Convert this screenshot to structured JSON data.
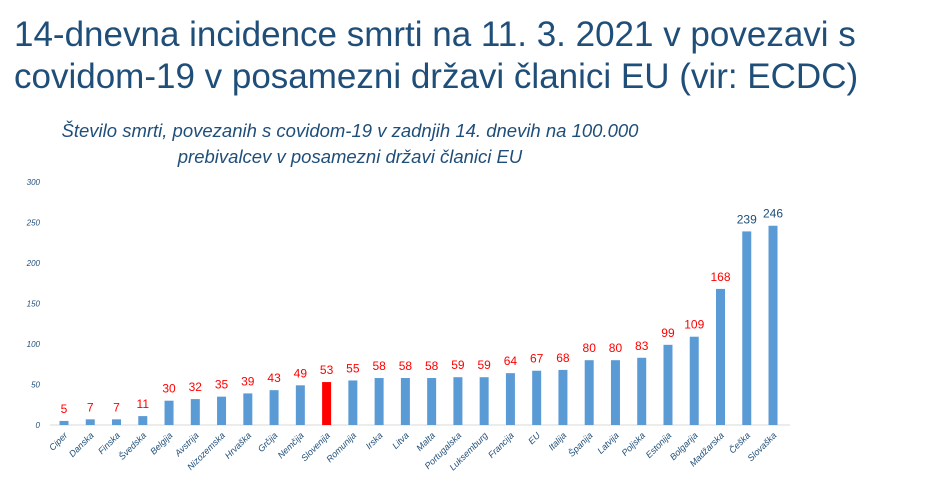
{
  "title_line1": "14-dnevna incidence smrti na 11. 3. 2021 v  povezavi s",
  "title_line2": "covidom-19 v posamezni državi članici EU (vir: ECDC)",
  "chart_data": {
    "type": "bar",
    "title": "Število smrti, povezanih s covidom-19 v zadnjih 14. dnevih na 100.000 prebivalcev v posamezni državi članici EU",
    "categories": [
      "Ciper",
      "Danska",
      "Finska",
      "Švedska",
      "Belgija",
      "Avstrija",
      "Nizozemska",
      "Hrvaška",
      "Grčija",
      "Nemčija",
      "Slovenija",
      "Romunija",
      "Irska",
      "Litva",
      "Malta",
      "Portugalska",
      "Luksemburg",
      "Francija",
      "EU",
      "Italija",
      "Španija",
      "Latvija",
      "Poljska",
      "Estonija",
      "Bolgarija",
      "Madžarska",
      "Češka",
      "Slovaška"
    ],
    "values": [
      5,
      7,
      7,
      11,
      30,
      32,
      35,
      39,
      43,
      49,
      53,
      55,
      58,
      58,
      58,
      59,
      59,
      64,
      67,
      68,
      80,
      80,
      83,
      99,
      109,
      168,
      239,
      246
    ],
    "ylim": [
      0,
      300
    ],
    "yticks": [
      0,
      50,
      100,
      150,
      200,
      250,
      300
    ],
    "grid": false,
    "bar_color": "#5b9bd5",
    "highlight": {
      "category": "Slovenija",
      "color": "#ff0000"
    },
    "label_color": "#ff0000",
    "label_color_top": "#1f4e79"
  }
}
